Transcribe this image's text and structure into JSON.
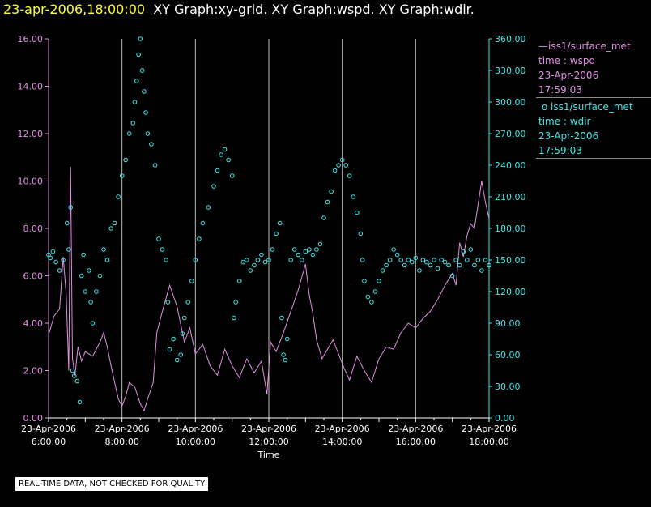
{
  "header": {
    "timestamp": "23-apr-2006,18:00:00",
    "graphs": "XY Graph:xy-grid.  XY Graph:wspd.  XY Graph:wdir."
  },
  "legend": {
    "wspd": {
      "line_glyph": "—",
      "name": "iss1/surface_met",
      "var": "time : wspd",
      "date": "23-Apr-2006",
      "time": "17:59:03"
    },
    "wdir": {
      "marker_glyph": "o",
      "name": "iss1/surface_met",
      "var": "time : wdir",
      "date": "23-Apr-2006",
      "time": "17:59:03"
    }
  },
  "footer": {
    "quality_note": "REAL-TIME DATA, NOT CHECKED FOR QUALITY"
  },
  "colors": {
    "wspd": "#e090e0",
    "wdir": "#3fe8e8",
    "grid": "#bbbbbb",
    "axis": "#ffffff"
  },
  "chart_data": {
    "type": "line",
    "xlabel": "Time",
    "x_ticks": [
      {
        "hour": 6,
        "date": "23-Apr-2006",
        "time": "6:00:00"
      },
      {
        "hour": 8,
        "date": "23-Apr-2006",
        "time": "8:00:00"
      },
      {
        "hour": 10,
        "date": "23-Apr-2006",
        "time": "10:00:00"
      },
      {
        "hour": 12,
        "date": "23-Apr-2006",
        "time": "12:00:00"
      },
      {
        "hour": 14,
        "date": "23-Apr-2006",
        "time": "14:00:00"
      },
      {
        "hour": 16,
        "date": "23-Apr-2006",
        "time": "16:00:00"
      },
      {
        "hour": 18,
        "date": "23-Apr-2006",
        "time": "18:00:00"
      }
    ],
    "xlim": [
      6,
      18
    ],
    "gridlines_hours": [
      8,
      10,
      12,
      14,
      16,
      18
    ],
    "y_left": {
      "lim": [
        0,
        16
      ],
      "ticks": [
        "0.00",
        "2.00",
        "4.00",
        "6.00",
        "8.00",
        "10.00",
        "12.00",
        "14.00",
        "16.00"
      ]
    },
    "y_right": {
      "lim": [
        0,
        360
      ],
      "ticks": [
        "0.00",
        "30.00",
        "60.00",
        "90.00",
        "120.00",
        "150.00",
        "180.00",
        "210.00",
        "240.00",
        "270.00",
        "300.00",
        "330.00",
        "360.00"
      ]
    },
    "series": [
      {
        "name": "wspd",
        "axis": "left",
        "style": "line",
        "points": [
          [
            6.0,
            3.5
          ],
          [
            6.15,
            4.3
          ],
          [
            6.3,
            4.6
          ],
          [
            6.4,
            6.8
          ],
          [
            6.48,
            5.2
          ],
          [
            6.55,
            2.0
          ],
          [
            6.6,
            10.6
          ],
          [
            6.65,
            2.5
          ],
          [
            6.72,
            1.8
          ],
          [
            6.8,
            3.0
          ],
          [
            6.9,
            2.4
          ],
          [
            7.0,
            2.8
          ],
          [
            7.2,
            2.6
          ],
          [
            7.4,
            3.2
          ],
          [
            7.5,
            3.6
          ],
          [
            7.6,
            3.0
          ],
          [
            7.7,
            2.2
          ],
          [
            7.8,
            1.5
          ],
          [
            7.9,
            0.8
          ],
          [
            8.0,
            0.5
          ],
          [
            8.1,
            0.9
          ],
          [
            8.2,
            1.5
          ],
          [
            8.35,
            1.3
          ],
          [
            8.5,
            0.6
          ],
          [
            8.6,
            0.3
          ],
          [
            8.7,
            0.8
          ],
          [
            8.85,
            1.5
          ],
          [
            8.95,
            3.6
          ],
          [
            9.1,
            4.5
          ],
          [
            9.3,
            5.6
          ],
          [
            9.5,
            4.7
          ],
          [
            9.7,
            3.2
          ],
          [
            9.85,
            3.8
          ],
          [
            10.0,
            2.7
          ],
          [
            10.2,
            3.1
          ],
          [
            10.4,
            2.2
          ],
          [
            10.6,
            1.8
          ],
          [
            10.8,
            2.9
          ],
          [
            11.0,
            2.2
          ],
          [
            11.2,
            1.7
          ],
          [
            11.4,
            2.5
          ],
          [
            11.6,
            1.9
          ],
          [
            11.8,
            2.4
          ],
          [
            11.95,
            1.0
          ],
          [
            12.05,
            3.2
          ],
          [
            12.2,
            2.8
          ],
          [
            12.4,
            3.6
          ],
          [
            12.6,
            4.5
          ],
          [
            12.8,
            5.4
          ],
          [
            13.0,
            6.5
          ],
          [
            13.1,
            5.2
          ],
          [
            13.2,
            4.4
          ],
          [
            13.3,
            3.3
          ],
          [
            13.45,
            2.5
          ],
          [
            13.6,
            2.9
          ],
          [
            13.75,
            3.3
          ],
          [
            13.9,
            2.7
          ],
          [
            14.05,
            2.1
          ],
          [
            14.2,
            1.6
          ],
          [
            14.4,
            2.6
          ],
          [
            14.6,
            2.0
          ],
          [
            14.8,
            1.5
          ],
          [
            15.0,
            2.5
          ],
          [
            15.2,
            3.0
          ],
          [
            15.4,
            2.9
          ],
          [
            15.6,
            3.6
          ],
          [
            15.8,
            4.0
          ],
          [
            16.0,
            3.8
          ],
          [
            16.2,
            4.2
          ],
          [
            16.4,
            4.5
          ],
          [
            16.6,
            5.0
          ],
          [
            16.8,
            5.6
          ],
          [
            17.0,
            6.1
          ],
          [
            17.1,
            5.6
          ],
          [
            17.2,
            7.4
          ],
          [
            17.3,
            6.8
          ],
          [
            17.4,
            7.7
          ],
          [
            17.5,
            8.2
          ],
          [
            17.6,
            8.0
          ],
          [
            17.7,
            9.0
          ],
          [
            17.8,
            10.0
          ],
          [
            17.9,
            9.1
          ],
          [
            18.0,
            8.4
          ]
        ]
      },
      {
        "name": "wdir",
        "axis": "right",
        "style": "markers",
        "points": [
          [
            6.0,
            155
          ],
          [
            6.05,
            152
          ],
          [
            6.12,
            158
          ],
          [
            6.2,
            148
          ],
          [
            6.3,
            140
          ],
          [
            6.4,
            150
          ],
          [
            6.5,
            185
          ],
          [
            6.55,
            160
          ],
          [
            6.6,
            200
          ],
          [
            6.65,
            45
          ],
          [
            6.7,
            40
          ],
          [
            6.78,
            35
          ],
          [
            6.85,
            15
          ],
          [
            6.9,
            135
          ],
          [
            6.95,
            155
          ],
          [
            7.0,
            120
          ],
          [
            7.1,
            140
          ],
          [
            7.15,
            110
          ],
          [
            7.2,
            90
          ],
          [
            7.3,
            120
          ],
          [
            7.4,
            135
          ],
          [
            7.5,
            160
          ],
          [
            7.6,
            150
          ],
          [
            7.7,
            180
          ],
          [
            7.8,
            185
          ],
          [
            7.9,
            210
          ],
          [
            8.0,
            230
          ],
          [
            8.1,
            245
          ],
          [
            8.2,
            270
          ],
          [
            8.3,
            280
          ],
          [
            8.35,
            300
          ],
          [
            8.4,
            320
          ],
          [
            8.45,
            345
          ],
          [
            8.5,
            360
          ],
          [
            8.55,
            330
          ],
          [
            8.6,
            310
          ],
          [
            8.65,
            290
          ],
          [
            8.7,
            270
          ],
          [
            8.8,
            260
          ],
          [
            8.9,
            240
          ],
          [
            9.0,
            170
          ],
          [
            9.1,
            160
          ],
          [
            9.2,
            150
          ],
          [
            9.25,
            110
          ],
          [
            9.3,
            65
          ],
          [
            9.4,
            75
          ],
          [
            9.5,
            55
          ],
          [
            9.6,
            60
          ],
          [
            9.65,
            80
          ],
          [
            9.7,
            95
          ],
          [
            9.8,
            110
          ],
          [
            9.9,
            130
          ],
          [
            10.0,
            150
          ],
          [
            10.1,
            170
          ],
          [
            10.2,
            185
          ],
          [
            10.35,
            200
          ],
          [
            10.5,
            220
          ],
          [
            10.6,
            235
          ],
          [
            10.7,
            250
          ],
          [
            10.8,
            255
          ],
          [
            10.9,
            245
          ],
          [
            11.0,
            230
          ],
          [
            11.05,
            95
          ],
          [
            11.1,
            110
          ],
          [
            11.2,
            130
          ],
          [
            11.3,
            148
          ],
          [
            11.4,
            150
          ],
          [
            11.5,
            140
          ],
          [
            11.6,
            145
          ],
          [
            11.7,
            150
          ],
          [
            11.8,
            155
          ],
          [
            11.9,
            148
          ],
          [
            12.0,
            150
          ],
          [
            12.1,
            160
          ],
          [
            12.2,
            175
          ],
          [
            12.3,
            185
          ],
          [
            12.35,
            95
          ],
          [
            12.4,
            60
          ],
          [
            12.45,
            55
          ],
          [
            12.5,
            75
          ],
          [
            12.6,
            150
          ],
          [
            12.7,
            160
          ],
          [
            12.8,
            155
          ],
          [
            12.9,
            150
          ],
          [
            13.0,
            158
          ],
          [
            13.1,
            160
          ],
          [
            13.2,
            155
          ],
          [
            13.3,
            160
          ],
          [
            13.4,
            165
          ],
          [
            13.5,
            190
          ],
          [
            13.6,
            205
          ],
          [
            13.7,
            215
          ],
          [
            13.8,
            235
          ],
          [
            13.9,
            240
          ],
          [
            14.0,
            245
          ],
          [
            14.1,
            240
          ],
          [
            14.2,
            230
          ],
          [
            14.3,
            210
          ],
          [
            14.4,
            195
          ],
          [
            14.5,
            175
          ],
          [
            14.55,
            150
          ],
          [
            14.6,
            130
          ],
          [
            14.7,
            115
          ],
          [
            14.8,
            110
          ],
          [
            14.9,
            120
          ],
          [
            15.0,
            130
          ],
          [
            15.1,
            140
          ],
          [
            15.2,
            145
          ],
          [
            15.3,
            150
          ],
          [
            15.4,
            160
          ],
          [
            15.5,
            155
          ],
          [
            15.6,
            150
          ],
          [
            15.7,
            145
          ],
          [
            15.8,
            150
          ],
          [
            15.9,
            148
          ],
          [
            16.0,
            152
          ],
          [
            16.1,
            140
          ],
          [
            16.2,
            150
          ],
          [
            16.3,
            148
          ],
          [
            16.4,
            145
          ],
          [
            16.5,
            150
          ],
          [
            16.6,
            142
          ],
          [
            16.7,
            150
          ],
          [
            16.8,
            148
          ],
          [
            16.9,
            145
          ],
          [
            17.0,
            135
          ],
          [
            17.1,
            150
          ],
          [
            17.2,
            145
          ],
          [
            17.3,
            158
          ],
          [
            17.4,
            150
          ],
          [
            17.5,
            160
          ],
          [
            17.6,
            145
          ],
          [
            17.7,
            150
          ],
          [
            17.8,
            140
          ],
          [
            17.9,
            150
          ],
          [
            18.0,
            145
          ]
        ]
      }
    ]
  }
}
